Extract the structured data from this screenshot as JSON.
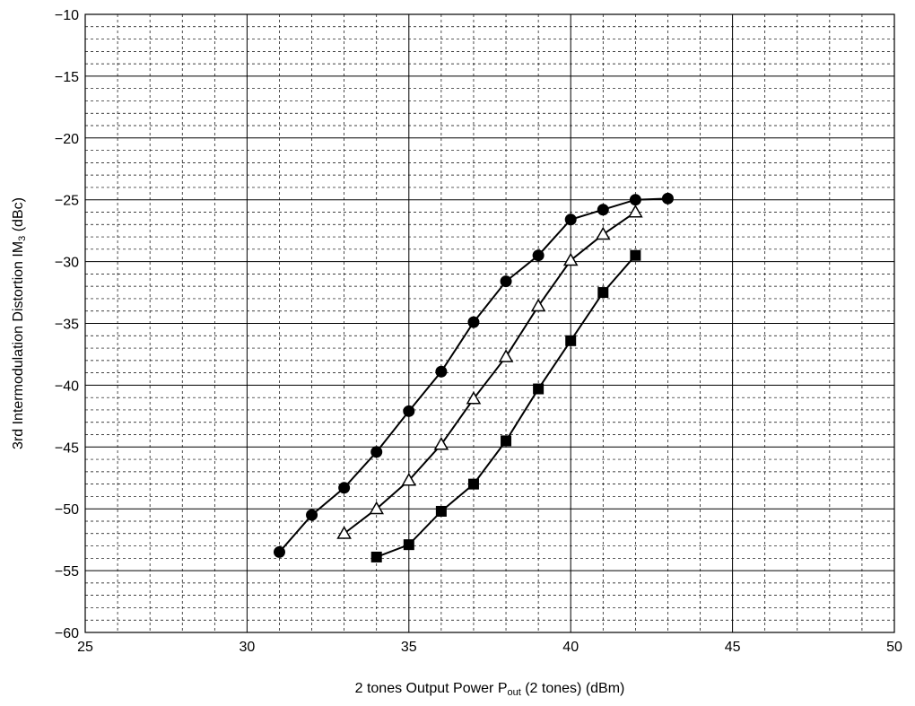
{
  "chart_data": {
    "type": "line",
    "xlabel": "2 tones Output Power P",
    "xlabel_sub": "out",
    "xlabel_tail": " (2 tones) (dBm)",
    "ylabel": "3rd Intermodulation Distortion IM",
    "ylabel_sub": "3",
    "ylabel_tail": " (dBc)",
    "xlim": [
      25,
      50
    ],
    "ylim": [
      -60,
      -10
    ],
    "x_ticks": [
      25,
      30,
      35,
      40,
      45,
      50
    ],
    "x_tick_labels": [
      "25",
      "30",
      "35",
      "40",
      "45",
      "50"
    ],
    "y_ticks": [
      -10,
      -15,
      -20,
      -25,
      -30,
      -35,
      -40,
      -45,
      -50,
      -55,
      -60
    ],
    "y_tick_labels": [
      "−10",
      "−15",
      "−20",
      "−25",
      "−30",
      "−35",
      "−40",
      "−45",
      "−50",
      "−55",
      "−60"
    ],
    "x_minor_step": 1,
    "y_minor_step": 1,
    "grid": true,
    "line_color": "#000000",
    "series": [
      {
        "marker": "circle-filled",
        "x": [
          31,
          32,
          33,
          34,
          35,
          36,
          37,
          38,
          39,
          40,
          41,
          42,
          43
        ],
        "y": [
          -53.5,
          -50.5,
          -48.3,
          -45.4,
          -42.1,
          -38.9,
          -34.9,
          -31.6,
          -29.5,
          -26.6,
          -25.8,
          -25.0,
          -24.9
        ]
      },
      {
        "marker": "triangle-open",
        "x": [
          33,
          34,
          35,
          36,
          37,
          38,
          39,
          40,
          41,
          42
        ],
        "y": [
          -52.0,
          -50.0,
          -47.7,
          -44.8,
          -41.1,
          -37.7,
          -33.6,
          -29.9,
          -27.8,
          -26.0
        ]
      },
      {
        "marker": "square-filled",
        "x": [
          34,
          35,
          36,
          37,
          38,
          39,
          40,
          41,
          42
        ],
        "y": [
          -53.9,
          -52.9,
          -50.2,
          -48.0,
          -44.5,
          -40.3,
          -36.4,
          -32.5,
          -29.5
        ]
      }
    ]
  }
}
